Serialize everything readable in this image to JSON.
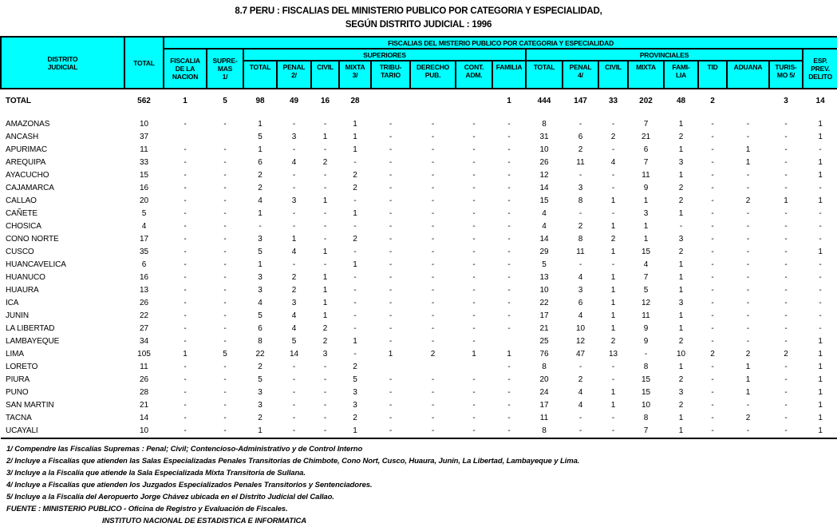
{
  "title": {
    "line1": "8.7 PERU : FISCALIAS DEL MINISTERIO PUBLICO POR CATEGORIA Y ESPECIALIDAD,",
    "line2": "SEGÚN DISTRITO JUDICIAL : 1996"
  },
  "colors": {
    "header_bg": "#00FFFF",
    "border": "#000000",
    "text": "#000000"
  },
  "table": {
    "header": {
      "distrito": "DISTRITO\nJUDICIAL",
      "total": "TOTAL",
      "banner": "FISCALIAS DEL MISTERIO PUBLICO POR CATEGORIA Y ESPECIALIDAD",
      "fiscalia_nacion": "FISCALIA\nDE LA\nNACION",
      "supremas": "SUPRE-\nMAS\n1/",
      "superiores": "SUPERIORES",
      "provinciales": "PROVINCIALES",
      "esp": "ESP.\nPREV.\nDELITO",
      "sup_cols": [
        "TOTAL",
        "PENAL\n2/",
        "CIVIL",
        "MIXTA\n3/",
        "TRIBU-\nTARIO",
        "DERECHO\nPUB.",
        "CONT.\nADM.",
        "FAMILIA"
      ],
      "prov_cols": [
        "TOTAL",
        "PENAL\n4/",
        "CIVIL",
        "MIXTA",
        "FAMI-\nLIA",
        "TID",
        "ADUANA",
        "TURIS-\nMO 5/"
      ]
    },
    "total_row": {
      "name": "TOTAL",
      "values": [
        "562",
        "1",
        "5",
        "98",
        "49",
        "16",
        "28",
        "",
        "",
        "",
        "1",
        "444",
        "147",
        "33",
        "202",
        "48",
        "2",
        "",
        "3",
        "14"
      ]
    },
    "rows": [
      {
        "name": "AMAZONAS",
        "values": [
          "10",
          "-",
          "-",
          "1",
          "-",
          "-",
          "1",
          "-",
          "-",
          "-",
          "-",
          "8",
          "-",
          "-",
          "7",
          "1",
          "-",
          "-",
          "-",
          "1"
        ]
      },
      {
        "name": "ANCASH",
        "values": [
          "37",
          "",
          "",
          "5",
          "3",
          "1",
          "1",
          "-",
          "-",
          "-",
          "-",
          "31",
          "6",
          "2",
          "21",
          "2",
          "-",
          "-",
          "-",
          "1"
        ]
      },
      {
        "name": "APURIMAC",
        "values": [
          "11",
          "-",
          "-",
          "1",
          "-",
          "-",
          "1",
          "-",
          "-",
          "-",
          "-",
          "10",
          "2",
          "-",
          "6",
          "1",
          "-",
          "1",
          "-",
          "-"
        ]
      },
      {
        "name": "AREQUIPA",
        "values": [
          "33",
          "-",
          "-",
          "6",
          "4",
          "2",
          "-",
          "-",
          "-",
          "-",
          "-",
          "26",
          "11",
          "4",
          "7",
          "3",
          "-",
          "1",
          "-",
          "1"
        ]
      },
      {
        "name": "AYACUCHO",
        "values": [
          "15",
          "-",
          "-",
          "2",
          "-",
          "-",
          "2",
          "-",
          "-",
          "-",
          "-",
          "12",
          "-",
          "-",
          "11",
          "1",
          "-",
          "-",
          "-",
          "1"
        ]
      },
      {
        "name": "CAJAMARCA",
        "values": [
          "16",
          "-",
          "-",
          "2",
          "-",
          "-",
          "2",
          "-",
          "-",
          "-",
          "-",
          "14",
          "3",
          "-",
          "9",
          "2",
          "-",
          "-",
          "-",
          "-"
        ]
      },
      {
        "name": "CALLAO",
        "values": [
          "20",
          "-",
          "-",
          "4",
          "3",
          "1",
          "-",
          "-",
          "-",
          "-",
          "-",
          "15",
          "8",
          "1",
          "1",
          "2",
          "-",
          "2",
          "1",
          "1"
        ]
      },
      {
        "name": "CAÑETE",
        "values": [
          "5",
          "-",
          "-",
          "1",
          "-",
          "-",
          "1",
          "-",
          "-",
          "-",
          "-",
          "4",
          "-",
          "-",
          "3",
          "1",
          "-",
          "-",
          "-",
          "-"
        ]
      },
      {
        "name": "CHOSICA",
        "values": [
          "4",
          "-",
          "-",
          "-",
          "-",
          "-",
          "-",
          "-",
          "-",
          "-",
          "-",
          "4",
          "2",
          "1",
          "1",
          "-",
          "-",
          "-",
          "-",
          "-"
        ]
      },
      {
        "name": "CONO NORTE",
        "values": [
          "17",
          "-",
          "-",
          "3",
          "1",
          "-",
          "2",
          "-",
          "-",
          "-",
          "-",
          "14",
          "8",
          "2",
          "1",
          "3",
          "-",
          "-",
          "-",
          "-"
        ]
      },
      {
        "name": "CUSCO",
        "values": [
          "35",
          "-",
          "-",
          "5",
          "4",
          "1",
          "-",
          "-",
          "-",
          "-",
          "-",
          "29",
          "11",
          "1",
          "15",
          "2",
          "-",
          "-",
          "-",
          "1"
        ]
      },
      {
        "name": "HUANCAVELICA",
        "values": [
          "6",
          "-",
          "-",
          "1",
          "-",
          "-",
          "1",
          "-",
          "-",
          "-",
          "-",
          "5",
          "-",
          "-",
          "4",
          "1",
          "-",
          "-",
          "-",
          "-"
        ]
      },
      {
        "name": "HUANUCO",
        "values": [
          "16",
          "-",
          "-",
          "3",
          "2",
          "1",
          "-",
          "-",
          "-",
          "-",
          "-",
          "13",
          "4",
          "1",
          "7",
          "1",
          "-",
          "-",
          "-",
          "-"
        ]
      },
      {
        "name": "HUAURA",
        "values": [
          "13",
          "-",
          "-",
          "3",
          "2",
          "1",
          "-",
          "-",
          "-",
          "-",
          "-",
          "10",
          "3",
          "1",
          "5",
          "1",
          "-",
          "-",
          "-",
          "-"
        ]
      },
      {
        "name": "ICA",
        "values": [
          "26",
          "-",
          "-",
          "4",
          "3",
          "1",
          "-",
          "-",
          "-",
          "-",
          "-",
          "22",
          "6",
          "1",
          "12",
          "3",
          "-",
          "-",
          "-",
          "-"
        ]
      },
      {
        "name": "JUNIN",
        "values": [
          "22",
          "-",
          "-",
          "5",
          "4",
          "1",
          "-",
          "-",
          "-",
          "-",
          "-",
          "17",
          "4",
          "1",
          "11",
          "1",
          "-",
          "-",
          "-",
          "-"
        ]
      },
      {
        "name": "LA LIBERTAD",
        "values": [
          "27",
          "-",
          "-",
          "6",
          "4",
          "2",
          "-",
          "-",
          "-",
          "-",
          "-",
          "21",
          "10",
          "1",
          "9",
          "1",
          "-",
          "-",
          "-",
          "-"
        ]
      },
      {
        "name": "LAMBAYEQUE",
        "values": [
          "34",
          "-",
          "-",
          "8",
          "5",
          "2",
          "1",
          "-",
          "-",
          "-",
          "",
          "25",
          "12",
          "2",
          "9",
          "2",
          "-",
          "-",
          "-",
          "1"
        ]
      },
      {
        "name": "LIMA",
        "values": [
          "105",
          "1",
          "5",
          "22",
          "14",
          "3",
          "-",
          "1",
          "2",
          "1",
          "1",
          "76",
          "47",
          "13",
          "-",
          "10",
          "2",
          "2",
          "2",
          "1"
        ]
      },
      {
        "name": "LORETO",
        "values": [
          "11",
          "-",
          "-",
          "2",
          "-",
          "-",
          "2",
          "",
          "",
          "",
          "-",
          "8",
          "-",
          "-",
          "8",
          "1",
          "-",
          "1",
          "-",
          "1"
        ]
      },
      {
        "name": "PIURA",
        "values": [
          "26",
          "-",
          "-",
          "5",
          "-",
          "-",
          "5",
          "-",
          "-",
          "-",
          "-",
          "20",
          "2",
          "-",
          "15",
          "2",
          "-",
          "1",
          "-",
          "1"
        ]
      },
      {
        "name": "PUNO",
        "values": [
          "28",
          "-",
          "-",
          "3",
          "-",
          "-",
          "3",
          "-",
          "-",
          "-",
          "-",
          "24",
          "4",
          "1",
          "15",
          "3",
          "-",
          "1",
          "-",
          "1"
        ]
      },
      {
        "name": "SAN MARTIN",
        "values": [
          "21",
          "-",
          "-",
          "3",
          "-",
          "-",
          "3",
          "-",
          "-",
          "-",
          "-",
          "17",
          "4",
          "1",
          "10",
          "2",
          "-",
          "-",
          "-",
          "1"
        ]
      },
      {
        "name": "TACNA",
        "values": [
          "14",
          "-",
          "-",
          "2",
          "-",
          "-",
          "2",
          "-",
          "-",
          "-",
          "-",
          "11",
          "-",
          "-",
          "8",
          "1",
          "-",
          "2",
          "-",
          "1"
        ]
      },
      {
        "name": "UCAYALI",
        "values": [
          "10",
          "-",
          "-",
          "1",
          "-",
          "-",
          "1",
          "-",
          "-",
          "-",
          "-",
          "8",
          "-",
          "-",
          "7",
          "1",
          "-",
          "-",
          "-",
          "1"
        ]
      }
    ]
  },
  "footnotes": [
    "1/ Compendre las Fiscalías Supremas : Penal; Civil; Contencioso-Administrativo y de Control Interno",
    "2/ Incluye a Fiscalías que atienden las Salas Especializadas Penales Transitorias de Chimbote, Cono Nort, Cusco, Huaura, Junín, La Libertad, Lambayeque y Lima.",
    "3/ Incluye a la Fiscalía que atiende la Sala Especializada Mixta Transitoria de Sullana.",
    "4/ Incluye a Fiscalías que atienden los Juzgados Especializados Penales Transitorios y Sentenciadores.",
    "5/ Incluye a la Fiscalía del Aeropuerto Jorge Chávez ubicada en el Distrito Judicial del Callao.",
    "FUENTE : MINISTERIO PUBLICO - Oficina de Registro y Evaluación de Fiscales."
  ],
  "institution": "INSTITUTO NACIONAL DE ESTADISTICA E INFORMATICA"
}
